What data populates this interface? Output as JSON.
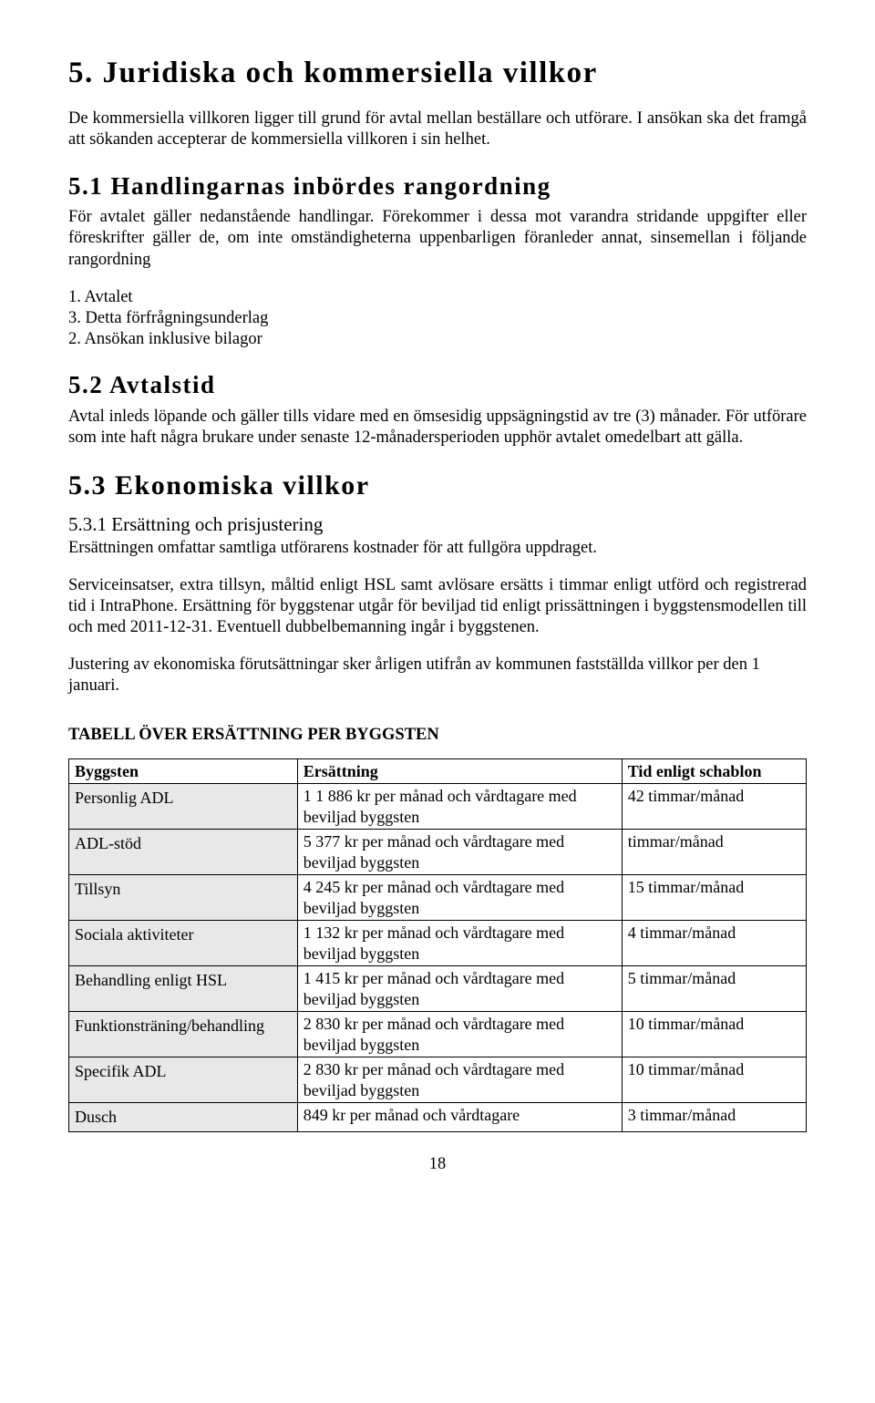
{
  "headings": {
    "h5": "5. Juridiska och kommersiella villkor",
    "h51": "5.1 Handlingarnas inbördes rangordning",
    "h52": "5.2 Avtalstid",
    "h53": "5.3 Ekonomiska villkor",
    "h531": "5.3.1 Ersättning och prisjustering"
  },
  "paragraphs": {
    "intro5": "De kommersiella villkoren ligger till grund för avtal mellan beställare och utförare. I ansökan ska det framgå att sökanden accepterar de kommersiella villkoren i sin helhet.",
    "p51a": "För avtalet gäller nedanstående handlingar. Förekommer i dessa mot varandra stridande uppgifter eller föreskrifter gäller de, om inte omständigheterna uppenbarligen föranleder annat, sinsemellan i följande rangordning",
    "li1": "1. Avtalet",
    "li2": "3. Detta förfrågningsunderlag",
    "li3": "2. Ansökan inklusive bilagor",
    "p52": "Avtal inleds löpande och gäller tills vidare med en ömsesidig uppsägningstid av tre (3) månader. För utförare som inte haft några brukare under senaste 12-månadersperioden upphör avtalet omedelbart att gälla.",
    "p531a": "Ersättningen omfattar samtliga utförarens kostnader för att fullgöra uppdraget.",
    "p531b": "Serviceinsatser, extra tillsyn, måltid enligt HSL samt avlösare ersätts i timmar enligt utförd och registrerad tid i IntraPhone. Ersättning för byggstenar utgår för beviljad tid enligt prissättningen i byggstensmodellen till och med 2011-12-31. Eventuell dubbelbemanning ingår i byggstenen.",
    "p531c": "Justering av ekonomiska förutsättningar sker årligen utifrån av kommunen fastställda villkor per den 1 januari."
  },
  "table": {
    "title": "TABELL ÖVER ERSÄTTNING PER BYGGSTEN",
    "headers": {
      "c1": "Byggsten",
      "c2": "Ersättning",
      "c3": "Tid enligt schablon"
    },
    "rows": [
      {
        "byggsten": "Personlig ADL",
        "ers": "1 1 886 kr per månad och vårdtagare med beviljad byggsten",
        "tid": "42 timmar/månad"
      },
      {
        "byggsten": "ADL-stöd",
        "ers": "5 377 kr per månad och vårdtagare med beviljad byggsten",
        "tid": " timmar/månad"
      },
      {
        "byggsten": "Tillsyn",
        "ers": "4 245 kr per månad och vårdtagare med beviljad byggsten",
        "tid": "15 timmar/månad"
      },
      {
        "byggsten": "Sociala aktiviteter",
        "ers": "1 132 kr per månad och vårdtagare med beviljad byggsten",
        "tid": "4 timmar/månad"
      },
      {
        "byggsten": "Behandling enligt HSL",
        "ers": "1 415 kr per månad och vårdtagare med beviljad byggsten",
        "tid": "5 timmar/månad"
      },
      {
        "byggsten": "Funktionsträning/behandling",
        "ers": "2 830 kr per månad och vårdtagare med beviljad byggsten",
        "tid": "10 timmar/månad"
      },
      {
        "byggsten": "Specifik ADL",
        "ers": "2 830 kr per månad och vårdtagare med beviljad byggsten",
        "tid": "10 timmar/månad"
      },
      {
        "byggsten": "Dusch",
        "ers": "849 kr per månad och vårdtagare",
        "tid": "3 timmar/månad"
      }
    ]
  },
  "page_number": "18"
}
